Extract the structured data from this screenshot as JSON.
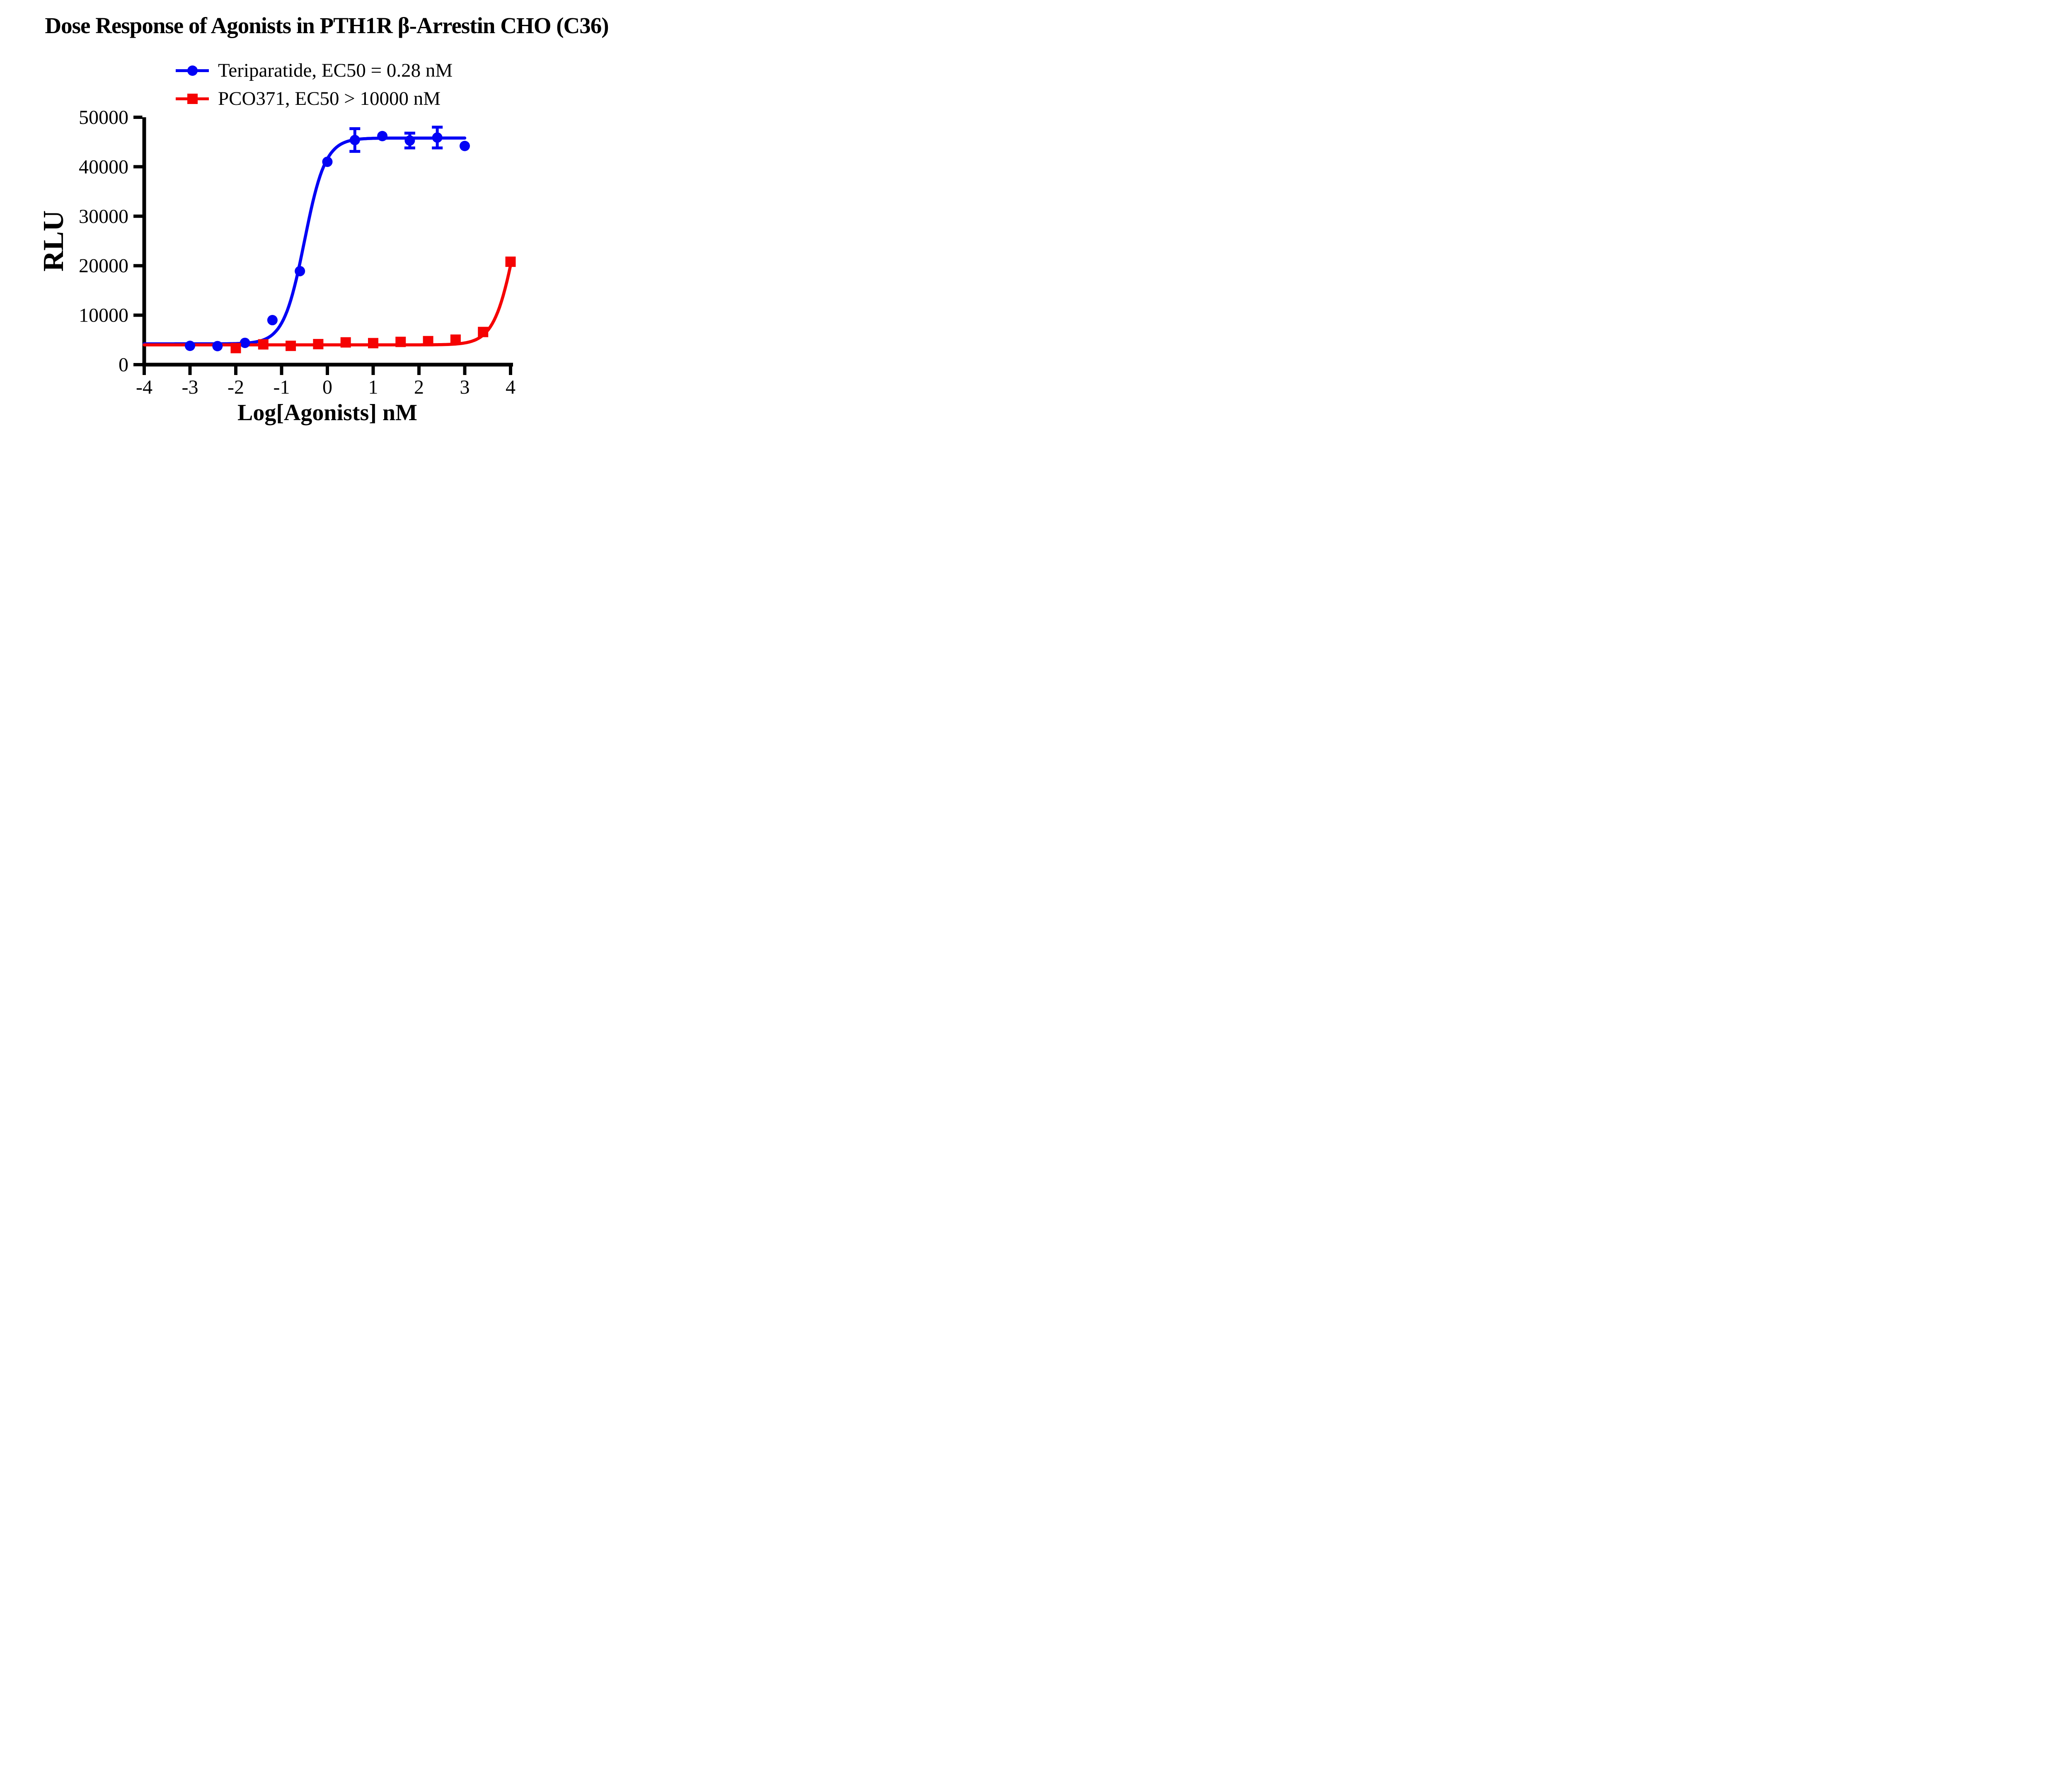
{
  "chart_data": {
    "type": "scatter",
    "title": "Dose Response of Agonists in PTH1R β-Arrestin CHO (C36)",
    "x_axis": {
      "label": "Log[Agonists] nM",
      "min": -4,
      "max": 4,
      "ticks": [
        -4,
        -3,
        -2,
        -1,
        0,
        1,
        2,
        3,
        4
      ],
      "tick_labels": [
        "-4",
        "-3",
        "-2",
        "-1",
        "0",
        "1",
        "2",
        "3",
        "4"
      ]
    },
    "y_axis": {
      "label": "RLU",
      "min": 0,
      "max": 50000,
      "ticks": [
        0,
        10000,
        20000,
        30000,
        40000,
        50000
      ],
      "tick_labels": [
        "0",
        "10000",
        "20000",
        "30000",
        "40000",
        "50000"
      ]
    },
    "grid": false,
    "legend_position": "top-left-of-plot",
    "series": [
      {
        "name": "Teriparatide",
        "legend_label": "Teriparatide, EC50 = 0.28 nM",
        "ec50_nM": 0.28,
        "color": "#0202f5",
        "marker": "circle",
        "points": [
          {
            "x": -3.0,
            "y": 3800
          },
          {
            "x": -2.4,
            "y": 3750
          },
          {
            "x": -1.8,
            "y": 4400
          },
          {
            "x": -1.2,
            "y": 9000
          },
          {
            "x": -0.6,
            "y": 18900
          },
          {
            "x": 0.0,
            "y": 41000
          },
          {
            "x": 0.6,
            "y": 45400,
            "err": 2300
          },
          {
            "x": 1.2,
            "y": 46200
          },
          {
            "x": 1.8,
            "y": 45300,
            "err": 1500
          },
          {
            "x": 2.4,
            "y": 45900,
            "err": 2100
          },
          {
            "x": 3.0,
            "y": 44200
          }
        ],
        "fit": {
          "bottom": 4200,
          "top": 45800,
          "logEC50": -0.5,
          "hill": 1.9,
          "x_start": -4,
          "x_end": 3.0
        }
      },
      {
        "name": "PCO371",
        "legend_label": "PCO371, EC50 > 10000 nM",
        "ec50_nM": ">10000",
        "color": "#f50202",
        "marker": "square",
        "points": [
          {
            "x": -2.0,
            "y": 3350
          },
          {
            "x": -1.4,
            "y": 4100
          },
          {
            "x": -0.8,
            "y": 3800
          },
          {
            "x": -0.2,
            "y": 4150
          },
          {
            "x": 0.4,
            "y": 4500
          },
          {
            "x": 1.0,
            "y": 4350
          },
          {
            "x": 1.6,
            "y": 4600
          },
          {
            "x": 2.2,
            "y": 4750
          },
          {
            "x": 2.8,
            "y": 5050
          },
          {
            "x": 3.4,
            "y": 6600
          },
          {
            "x": 4.0,
            "y": 20800
          }
        ],
        "fit": {
          "bottom": 4000,
          "top": 50000,
          "logEC50": 4.15,
          "hill": 1.8,
          "x_start": -4,
          "x_end": 4.0
        }
      }
    ]
  }
}
